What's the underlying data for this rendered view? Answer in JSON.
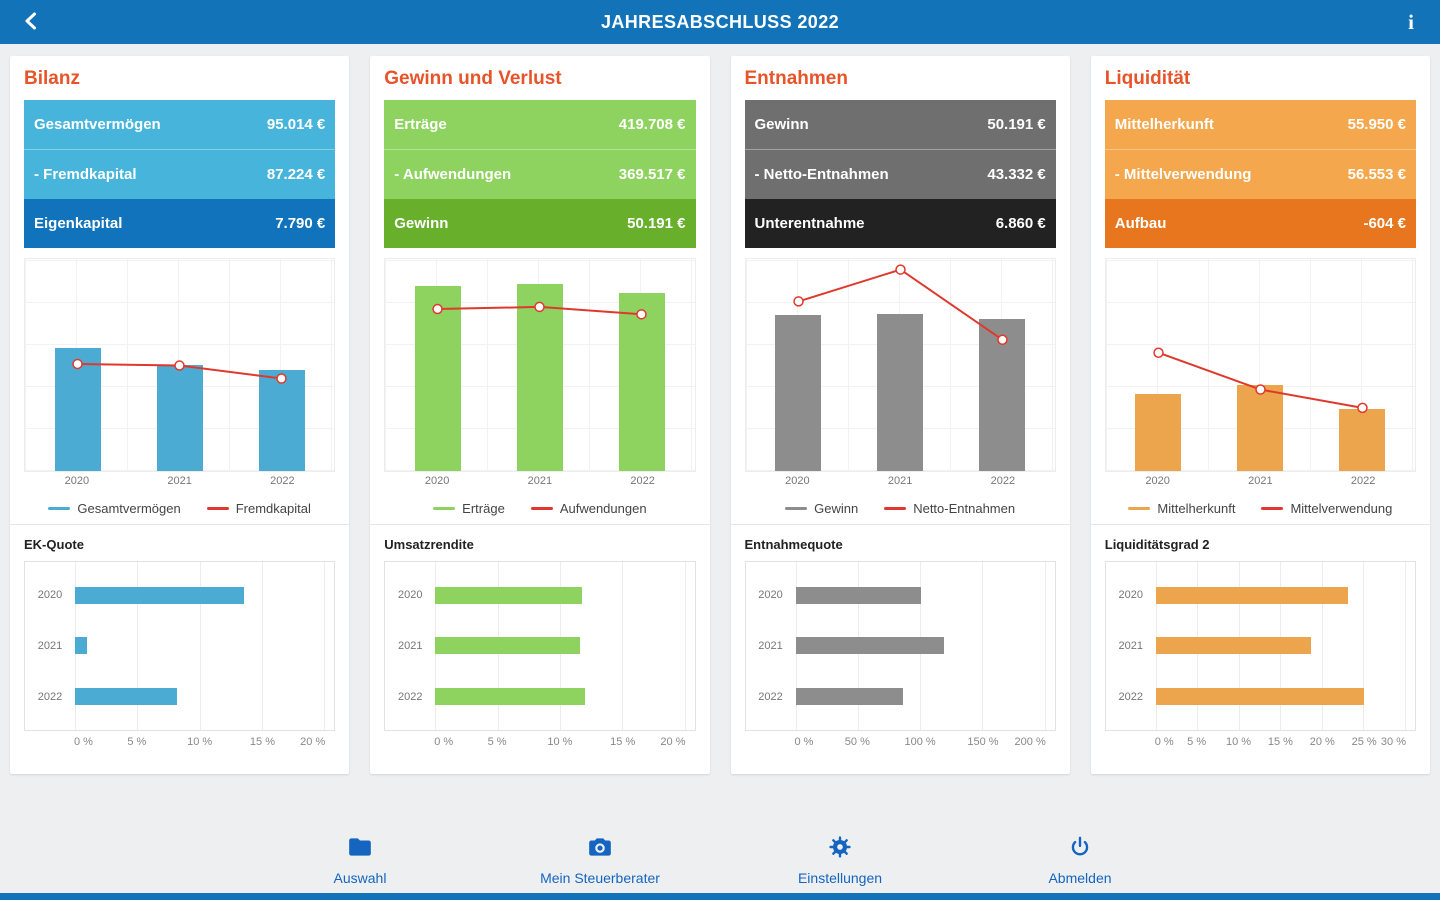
{
  "header": {
    "title": "JAHRESABSCHLUSS 2022",
    "back_icon": "chevron-left",
    "info_icon": "info"
  },
  "accent": {
    "header_bg": "#1273b9",
    "title_orange": "#e8542a",
    "line_red": "#e0382c",
    "nav_blue": "#1565c0"
  },
  "panels": [
    {
      "title": "Bilanz",
      "colors": {
        "light": "#47b5db",
        "dark": "#1173bb",
        "bar": "#4cabd3"
      },
      "rows": [
        {
          "label": "Gesamtvermögen",
          "value": "95.014 €"
        },
        {
          "label": "- Fremdkapital",
          "value": "87.224 €"
        },
        {
          "label": "Eigenkapital",
          "value": "7.790 €"
        }
      ],
      "trend": {
        "type": "bar+line",
        "categories": [
          "2020",
          "2021",
          "2022"
        ],
        "bar_series": {
          "name": "Gesamtvermögen",
          "values": [
            116000,
            100000,
            95014
          ]
        },
        "line_series": {
          "name": "Fremdkapital",
          "values": [
            101000,
            99500,
            87224
          ]
        },
        "ymax": 200000
      },
      "ratio": {
        "type": "bar",
        "title": "EK-Quote",
        "categories": [
          "2020",
          "2021",
          "2022"
        ],
        "values": [
          13.6,
          1.0,
          8.2
        ],
        "max": 20,
        "ticks": [
          "0 %",
          "5 %",
          "10 %",
          "15 %",
          "20 %"
        ]
      }
    },
    {
      "title": "Gewinn und Verlust",
      "colors": {
        "light": "#8ed35f",
        "dark": "#68b02c",
        "bar": "#8ed35f"
      },
      "rows": [
        {
          "label": "Erträge",
          "value": "419.708 €"
        },
        {
          "label": "- Aufwendungen",
          "value": "369.517 €"
        },
        {
          "label": "Gewinn",
          "value": "50.191 €"
        }
      ],
      "trend": {
        "type": "bar+line",
        "categories": [
          "2020",
          "2021",
          "2022"
        ],
        "bar_series": {
          "name": "Erträge",
          "values": [
            437000,
            442000,
            419708
          ]
        },
        "line_series": {
          "name": "Aufwendungen",
          "values": [
            382000,
            387000,
            369517
          ]
        },
        "ymax": 500000
      },
      "ratio": {
        "type": "bar",
        "title": "Umsatzrendite",
        "categories": [
          "2020",
          "2021",
          "2022"
        ],
        "values": [
          11.8,
          11.6,
          12.0
        ],
        "max": 20,
        "ticks": [
          "0 %",
          "5 %",
          "10 %",
          "15 %",
          "20 %"
        ]
      }
    },
    {
      "title": "Entnahmen",
      "colors": {
        "light": "#6f6f6f",
        "dark": "#222222",
        "bar": "#8d8d8d"
      },
      "rows": [
        {
          "label": "Gewinn",
          "value": "50.191 €"
        },
        {
          "label": "- Netto-Entnahmen",
          "value": "43.332 €"
        },
        {
          "label": "Unterentnahme",
          "value": "6.860 €"
        }
      ],
      "trend": {
        "type": "bar+line",
        "categories": [
          "2020",
          "2021",
          "2022"
        ],
        "bar_series": {
          "name": "Gewinn",
          "values": [
            51500,
            52000,
            50191
          ]
        },
        "line_series": {
          "name": "Netto-Entnahmen",
          "values": [
            56000,
            66500,
            43332
          ]
        },
        "ymax": 70000
      },
      "ratio": {
        "type": "bar",
        "title": "Entnahmequote",
        "categories": [
          "2020",
          "2021",
          "2022"
        ],
        "values": [
          101,
          119,
          86.3
        ],
        "max": 200,
        "ticks": [
          "0 %",
          "50 %",
          "100 %",
          "150 %",
          "200 %"
        ]
      }
    },
    {
      "title": "Liquidität",
      "colors": {
        "light": "#f4a74c",
        "dark": "#e8761e",
        "bar": "#eda54d"
      },
      "rows": [
        {
          "label": "Mittelherkunft",
          "value": "55.950 €"
        },
        {
          "label": "- Mittelverwendung",
          "value": "56.553 €"
        },
        {
          "label": "Aufbau",
          "value": "-604 €"
        }
      ],
      "trend": {
        "type": "bar+line",
        "categories": [
          "2020",
          "2021",
          "2022"
        ],
        "bar_series": {
          "name": "Mittelherkunft",
          "values": [
            69000,
            77000,
            55950
          ]
        },
        "line_series": {
          "name": "Mittelverwendung",
          "values": [
            106000,
            73000,
            56553
          ]
        },
        "ymax": 190000
      },
      "ratio": {
        "type": "bar",
        "title": "Liquiditätsgrad 2",
        "categories": [
          "2020",
          "2021",
          "2022"
        ],
        "values": [
          23.1,
          18.7,
          25.1
        ],
        "max": 30,
        "ticks": [
          "0 %",
          "5 %",
          "10 %",
          "15 %",
          "20 %",
          "25 %",
          "30 %"
        ]
      }
    }
  ],
  "bottom_nav": [
    {
      "label": "Auswahl",
      "icon": "folder"
    },
    {
      "label": "Mein Steuerberater",
      "icon": "camera"
    },
    {
      "label": "Einstellungen",
      "icon": "gear"
    },
    {
      "label": "Abmelden",
      "icon": "power"
    }
  ]
}
